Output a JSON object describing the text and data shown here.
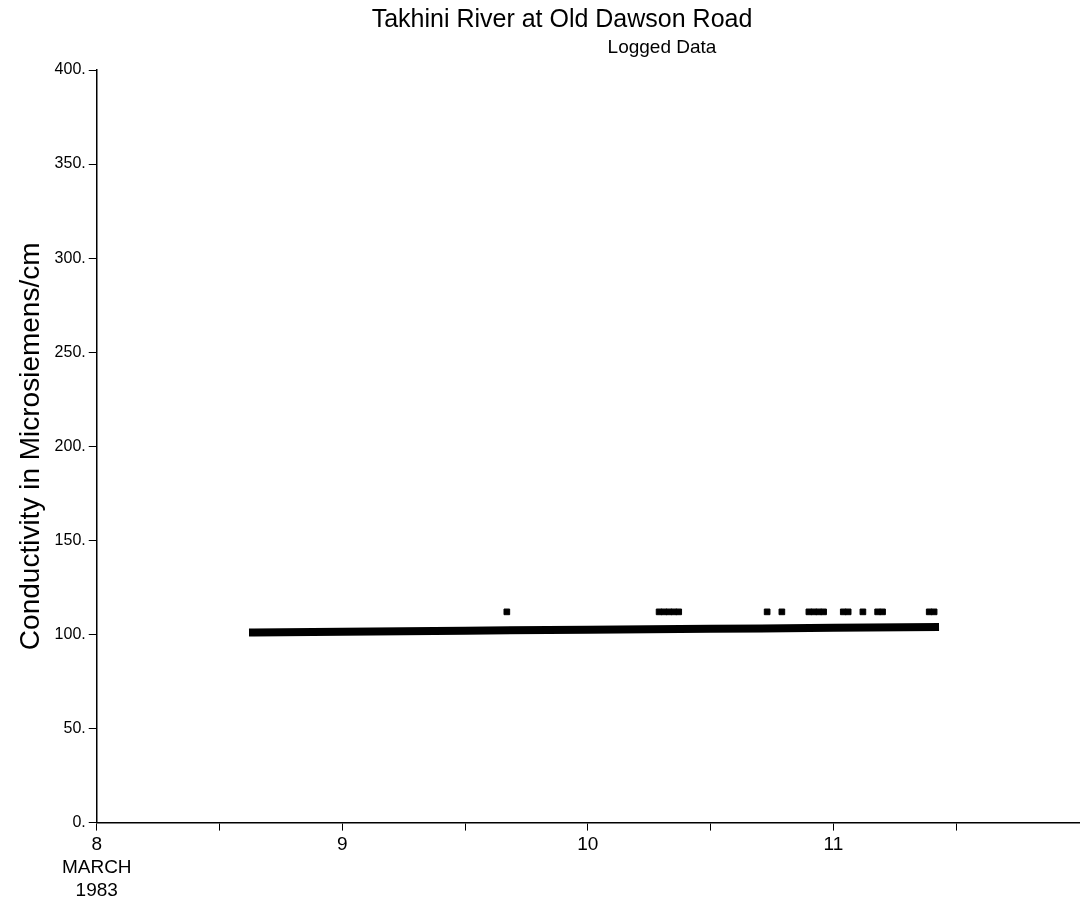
{
  "chart_data": {
    "type": "scatter",
    "title": "Takhini River at Old Dawson Road",
    "subtitle": "Logged Data",
    "ylabel": "Conductivity in Microsiemens/cm",
    "xlim": [
      8,
      12
    ],
    "xticks": [
      {
        "value": 8,
        "label": "8\nMARCH\n1983"
      },
      {
        "value": 8.5,
        "label": null
      },
      {
        "value": 9,
        "label": "9"
      },
      {
        "value": 9.5,
        "label": null
      },
      {
        "value": 10,
        "label": "10"
      },
      {
        "value": 10.5,
        "label": null
      },
      {
        "value": 11,
        "label": "11"
      },
      {
        "value": 11.5,
        "label": null
      }
    ],
    "ylim": [
      0,
      400
    ],
    "yticks": [
      {
        "value": 0,
        "label": "0."
      },
      {
        "value": 50,
        "label": "50."
      },
      {
        "value": 100,
        "label": "100."
      },
      {
        "value": 150,
        "label": "150."
      },
      {
        "value": 200,
        "label": "200."
      },
      {
        "value": 250,
        "label": "250."
      },
      {
        "value": 300,
        "label": "300."
      },
      {
        "value": 350,
        "label": "350."
      },
      {
        "value": 400,
        "label": "400."
      }
    ],
    "grid": false,
    "legend": false,
    "series": [
      {
        "type": "line",
        "marker": "none",
        "color": "#000000",
        "x": [
          8.62,
          9,
          9.5,
          10,
          10.5,
          11,
          11.43
        ],
        "values": [
          101,
          101.5,
          102,
          102.5,
          103,
          103.5,
          104
        ]
      },
      {
        "marker": "square",
        "color": "#000000",
        "x": [
          9.67,
          10.29,
          10.31,
          10.33,
          10.35,
          10.37,
          10.73,
          10.79,
          10.9,
          10.92,
          10.94,
          10.96,
          11.04,
          11.06,
          11.12,
          11.18,
          11.2,
          11.39,
          11.41
        ],
        "values": [
          112,
          112,
          112,
          112,
          112,
          112,
          112,
          112,
          112,
          112,
          112,
          112,
          112,
          112,
          112,
          112,
          112,
          112,
          112
        ]
      }
    ]
  }
}
